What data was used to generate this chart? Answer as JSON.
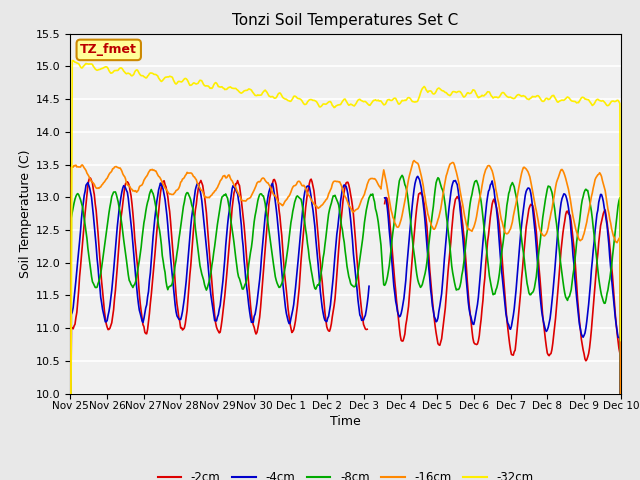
{
  "title": "Tonzi Soil Temperatures Set C",
  "xlabel": "Time",
  "ylabel": "Soil Temperature (C)",
  "ylim": [
    10.0,
    15.5
  ],
  "yticks": [
    10.0,
    10.5,
    11.0,
    11.5,
    12.0,
    12.5,
    13.0,
    13.5,
    14.0,
    14.5,
    15.0,
    15.5
  ],
  "bg_color": "#e8e8e8",
  "plot_bg_color": "#f0f0f0",
  "legend_label": "TZ_fmet",
  "legend_box_color": "#ffff99",
  "legend_box_edge": "#cc8800",
  "series_colors": {
    "-2cm": "#dd0000",
    "-4cm": "#0000cc",
    "-8cm": "#00aa00",
    "-16cm": "#ff8800",
    "-32cm": "#ffee00"
  },
  "xtick_labels": [
    "Nov 25",
    "Nov 26",
    "Nov 27",
    "Nov 28",
    "Nov 29",
    "Nov 30",
    "Dec 1",
    "Dec 2",
    "Dec 3",
    "Dec 4",
    "Dec 5",
    "Dec 6",
    "Dec 7",
    "Dec 8",
    "Dec 9",
    "Dec 10"
  ],
  "n_points": 600
}
